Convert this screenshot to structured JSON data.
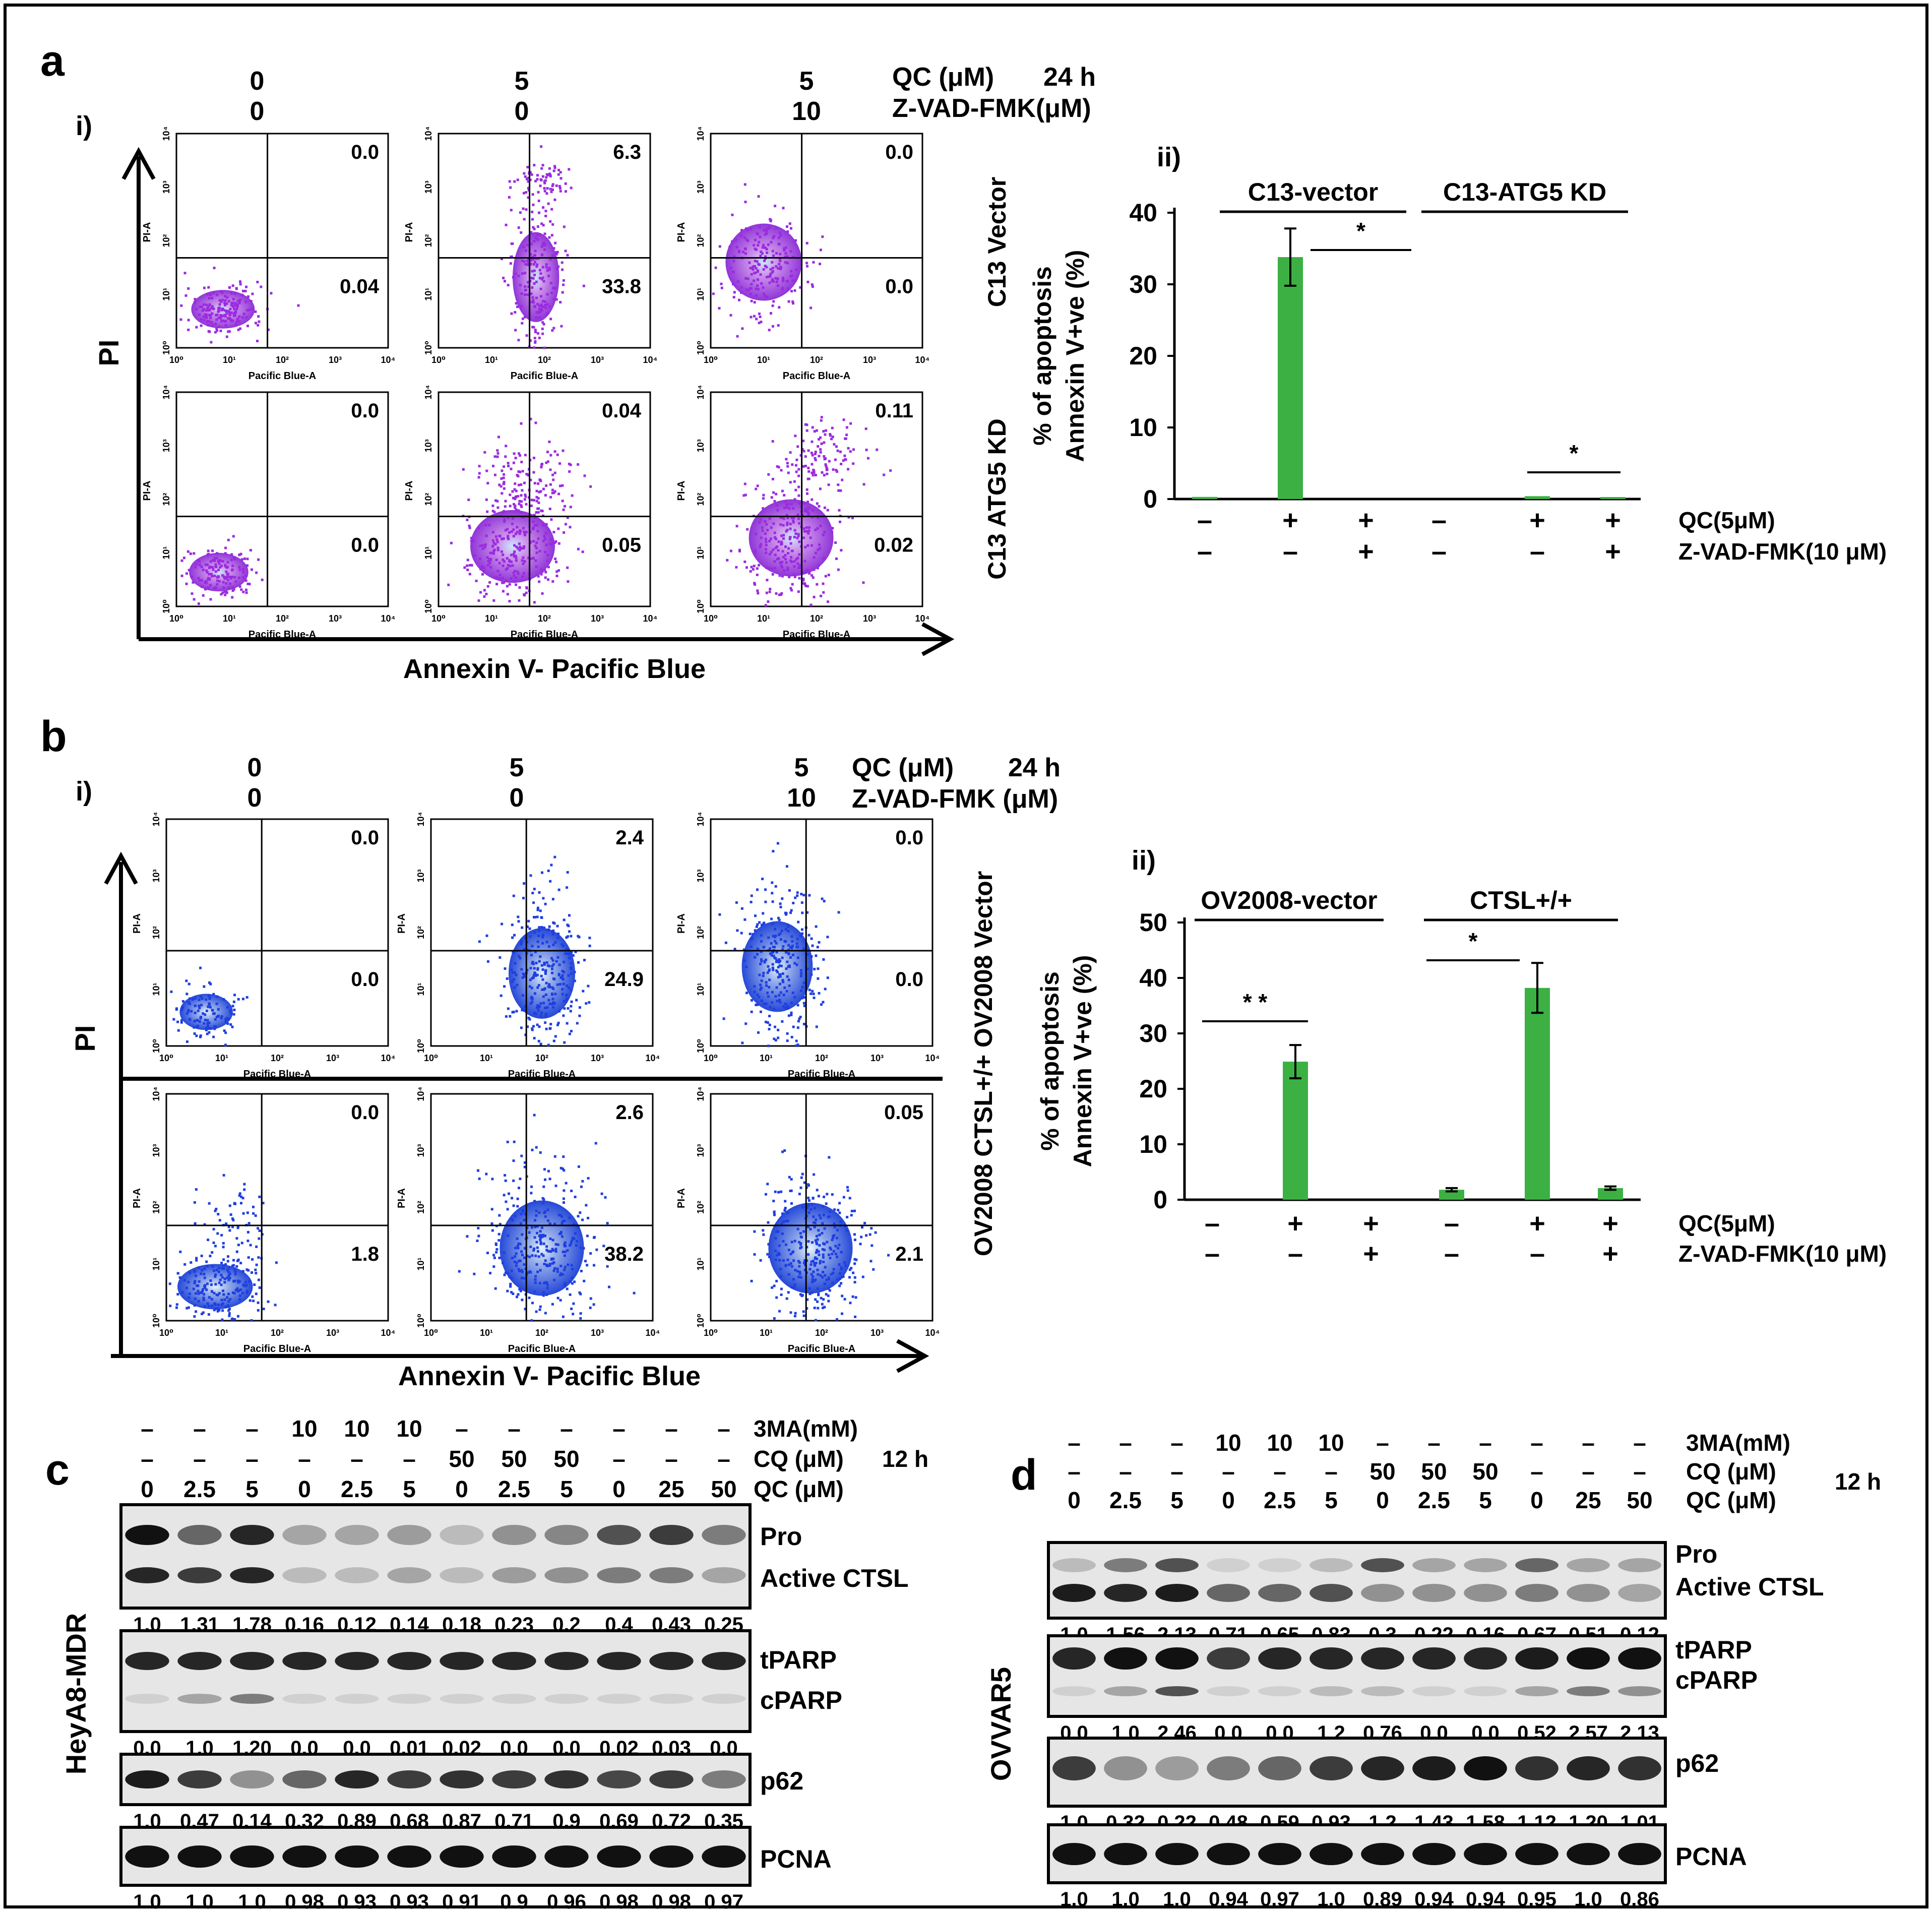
{
  "figure": {
    "panels": {
      "a": {
        "letter": "a",
        "sub_i": "i)",
        "sub_ii": "ii)",
        "header_cols": [
          [
            "0",
            "0"
          ],
          [
            "5",
            "0"
          ],
          [
            "5",
            "10"
          ]
        ],
        "header_labels": [
          "QC (μM)",
          "24 h",
          "Z-VAD-FMK(μM)"
        ],
        "row_labels": [
          "C13 Vector",
          "C13 ATG5 KD"
        ],
        "y_axis_label": "PI",
        "x_axis_label": "Annexin V- Pacific Blue",
        "facs_xlabel": "Pacific Blue-A",
        "facs_ylabel": "PI-A",
        "quadrants": [
          [
            [
              "0.0",
              "0.04"
            ],
            [
              "6.3",
              "33.8"
            ],
            [
              "0.0",
              "0.0"
            ]
          ],
          [
            [
              "0.0",
              "0.0"
            ],
            [
              "0.04",
              "0.05"
            ],
            [
              "0.11",
              "0.02"
            ]
          ]
        ]
      },
      "b": {
        "letter": "b",
        "sub_i": "i)",
        "sub_ii": "ii)",
        "header_cols": [
          [
            "0",
            "0"
          ],
          [
            "5",
            "0"
          ],
          [
            "5",
            "10"
          ]
        ],
        "header_labels": [
          "QC (μM)",
          "24 h",
          "Z-VAD-FMK (μM)"
        ],
        "row_label": "OV2008 CTSL+/+ OV2008 Vector",
        "y_axis_label": "PI",
        "x_axis_label": "Annexin V- Pacific Blue",
        "facs_xlabel": "Pacific Blue-A",
        "facs_ylabel": "PI-A",
        "quadrants": [
          [
            [
              "0.0",
              "0.0"
            ],
            [
              "2.4",
              "24.9"
            ],
            [
              "0.0",
              "0.0"
            ]
          ],
          [
            [
              "0.0",
              "1.8"
            ],
            [
              "2.6",
              "38.2"
            ],
            [
              "0.05",
              "2.1"
            ]
          ]
        ]
      },
      "c": {
        "letter": "c",
        "cell_line": "HeyA8-MDR",
        "rows": [
          [
            "–",
            "–",
            "–",
            "10",
            "10",
            "10",
            "–",
            "–",
            "–",
            "–",
            "–",
            "–"
          ],
          [
            "–",
            "–",
            "–",
            "–",
            "–",
            "–",
            "50",
            "50",
            "50",
            "–",
            "–",
            "–"
          ],
          [
            "0",
            "2.5",
            "5",
            "0",
            "2.5",
            "5",
            "0",
            "2.5",
            "5",
            "0",
            "25",
            "50"
          ]
        ],
        "row_labels": [
          "3MA(mM)",
          "CQ (μM)",
          "QC (μM)"
        ],
        "time": "12 h",
        "blot_labels": [
          "Pro",
          "Active CTSL",
          "tPARP",
          "cPARP",
          "p62",
          "PCNA"
        ],
        "quant": [
          [
            "1.0",
            "1.31",
            "1.78",
            "0.16",
            "0.12",
            "0.14",
            "0.18",
            "0.23",
            "0.2",
            "0.4",
            "0.43",
            "0.25"
          ],
          [
            "0.0",
            "1.0",
            "1.20",
            "0.0",
            "0.0",
            "0.01",
            "0.02",
            "0.0",
            "0.0",
            "0.02",
            "0.03",
            "0.0"
          ],
          [
            "1.0",
            "0.47",
            "0.14",
            "0.32",
            "0.89",
            "0.68",
            "0.87",
            "0.71",
            "0.9",
            "0.69",
            "0.72",
            "0.35"
          ],
          [
            "1.0",
            "1.0",
            "1.0",
            "0.98",
            "0.93",
            "0.93",
            "0.91",
            "0.9",
            "0.96",
            "0.98",
            "0.98",
            "0.97"
          ]
        ]
      },
      "d": {
        "letter": "d",
        "cell_line": "OVVAR5",
        "rows": [
          [
            "–",
            "–",
            "–",
            "10",
            "10",
            "10",
            "–",
            "–",
            "–",
            "–",
            "–",
            "–"
          ],
          [
            "–",
            "–",
            "–",
            "–",
            "–",
            "–",
            "50",
            "50",
            "50",
            "–",
            "–",
            "–"
          ],
          [
            "0",
            "2.5",
            "5",
            "0",
            "2.5",
            "5",
            "0",
            "2.5",
            "5",
            "0",
            "25",
            "50"
          ]
        ],
        "row_labels": [
          "3MA(mM)",
          "CQ (μM)",
          "QC (μM)"
        ],
        "time": "12 h",
        "blot_labels": [
          "Pro",
          "Active CTSL",
          "tPARP",
          "cPARP",
          "p62",
          "PCNA"
        ],
        "quant": [
          [
            "1.0",
            "1.56",
            "2.13",
            "0.71",
            "0.65",
            "0.83",
            "0.3",
            "0.22",
            "0.16",
            "0.67",
            "0.51",
            "0.12"
          ],
          [
            "0.0",
            "1.0",
            "2.46",
            "0.0",
            "0.0",
            "1.2",
            "0.76",
            "0.0",
            "0.0",
            "0.52",
            "2.57",
            "2.13"
          ],
          [
            "1.0",
            "0.32",
            "0.22",
            "0.48",
            "0.59",
            "0.93",
            "1.2",
            "1.43",
            "1.58",
            "1.12",
            "1.20",
            "1.01"
          ],
          [
            "1.0",
            "1.0",
            "1.0",
            "0.94",
            "0.97",
            "1.0",
            "0.89",
            "0.94",
            "0.94",
            "0.95",
            "1.0",
            "0.86"
          ]
        ]
      }
    }
  },
  "chart_data": [
    {
      "type": "bar",
      "panel": "a ii",
      "ylabel_lines": [
        "% of apoptosis",
        "Annexin V+ve (%)"
      ],
      "ylim": [
        0,
        40
      ],
      "yticks": [
        "0",
        "10",
        "20",
        "30",
        "40"
      ],
      "groups": [
        "C13-vector",
        "C13-ATG5 KD"
      ],
      "qc_row": [
        "–",
        "+",
        "+",
        "–",
        "+",
        "+"
      ],
      "zvad_row": [
        "–",
        "–",
        "+",
        "–",
        "–",
        "+"
      ],
      "row_labels": [
        "QC(5μM)",
        "Z-VAD-FMK(10 μM)"
      ],
      "values": [
        0.3,
        33.8,
        0.0,
        0.0,
        0.4,
        0.1
      ],
      "errors": [
        0.0,
        4.0,
        0.0,
        0.0,
        0.0,
        0.0
      ],
      "sig_marks": [
        "*",
        "*"
      ],
      "color": "#3cb043"
    },
    {
      "type": "bar",
      "panel": "b ii",
      "ylabel_lines": [
        "% of apoptosis",
        "Annexin V+ve (%)"
      ],
      "ylim": [
        0,
        50
      ],
      "yticks": [
        "0",
        "10",
        "20",
        "30",
        "40",
        "50"
      ],
      "groups": [
        "OV2008-vector",
        "CTSL+/+"
      ],
      "qc_row": [
        "–",
        "+",
        "+",
        "–",
        "+",
        "+"
      ],
      "zvad_row": [
        "–",
        "–",
        "+",
        "–",
        "–",
        "+"
      ],
      "row_labels": [
        "QC(5μM)",
        "Z-VAD-FMK(10 μM)"
      ],
      "values": [
        0.0,
        24.9,
        0.0,
        1.8,
        38.2,
        2.1
      ],
      "errors": [
        0.0,
        3.0,
        0.0,
        0.3,
        4.5,
        0.3
      ],
      "sig_marks": [
        "* *",
        "*"
      ],
      "color": "#3cb043"
    }
  ]
}
